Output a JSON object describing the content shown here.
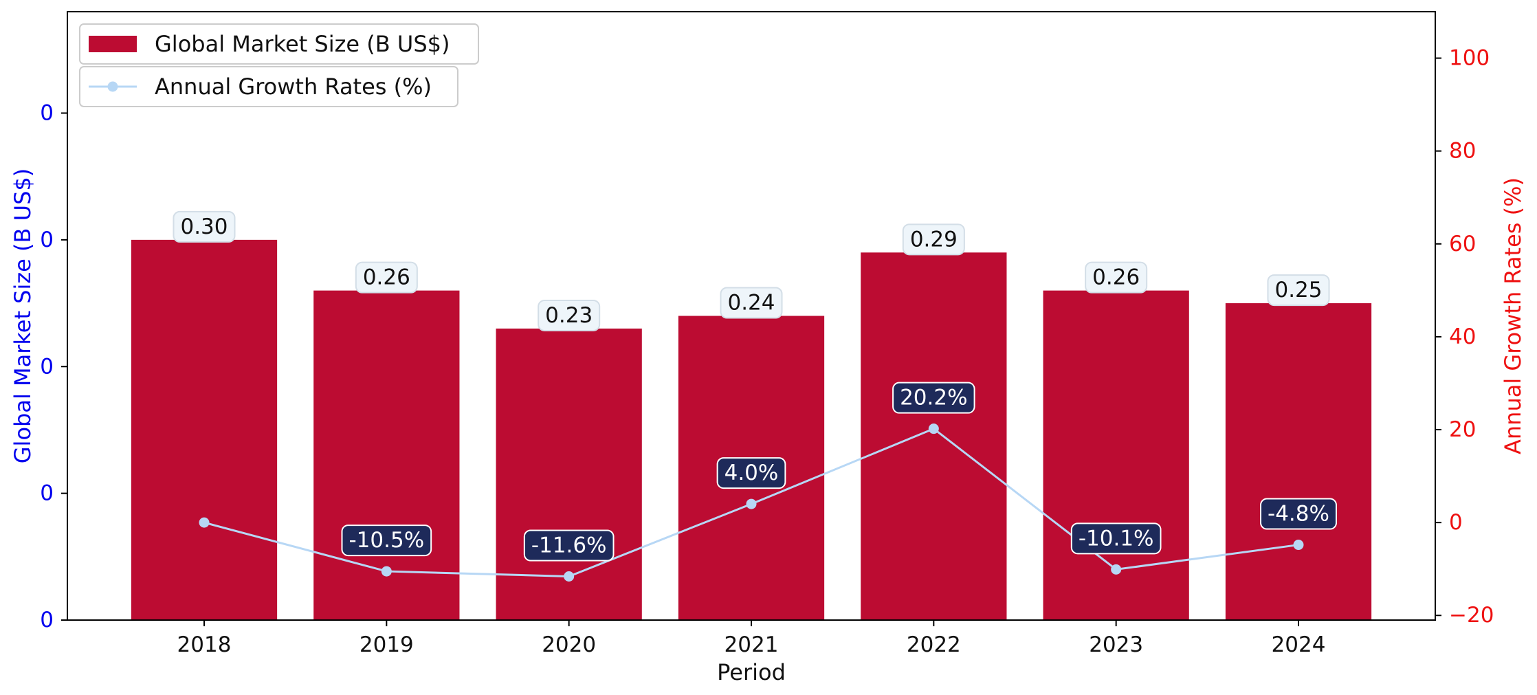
{
  "chart_data": {
    "type": "bar",
    "xlabel": "Period",
    "categories": [
      "2018",
      "2019",
      "2020",
      "2021",
      "2022",
      "2023",
      "2024"
    ],
    "series": [
      {
        "name": "Global Market Size (B US$)",
        "type": "bar",
        "axis": "left",
        "values": [
          0.3,
          0.26,
          0.23,
          0.24,
          0.29,
          0.26,
          0.25
        ],
        "labels": [
          "0.30",
          "0.26",
          "0.23",
          "0.24",
          "0.29",
          "0.26",
          "0.25"
        ],
        "color": "#BC0C32"
      },
      {
        "name": "Annual Growth Rates (%)",
        "type": "line",
        "axis": "right",
        "values": [
          0.0,
          -10.5,
          -11.6,
          4.0,
          20.2,
          -10.1,
          -4.8
        ],
        "labels": [
          "",
          "-10.5%",
          "-11.6%",
          "4.0%",
          "20.2%",
          "-10.1%",
          "-4.8%"
        ],
        "color": "#B7D7F5"
      }
    ],
    "left_axis": {
      "label": "Global Market Size (B US$)",
      "ticks": [
        0,
        0.1,
        0.2,
        0.3,
        0.4
      ],
      "tick_labels": [
        "0",
        "0",
        "0",
        "0",
        "0"
      ],
      "ylim": [
        0,
        0.48
      ],
      "color": "#0000EE"
    },
    "right_axis": {
      "label": "Annual Growth Rates (%)",
      "ticks": [
        -20,
        0,
        20,
        40,
        60,
        80,
        100
      ],
      "tick_labels": [
        "−20",
        "0",
        "20",
        "40",
        "60",
        "80",
        "100"
      ],
      "ylim": [
        -21,
        110
      ],
      "color": "#EE1111"
    },
    "label_box_colors": {
      "bar_label_bg": "#EEF5FA",
      "line_label_bg": "#1E2A5A"
    },
    "legend_position": "top-left",
    "grid": false
  }
}
